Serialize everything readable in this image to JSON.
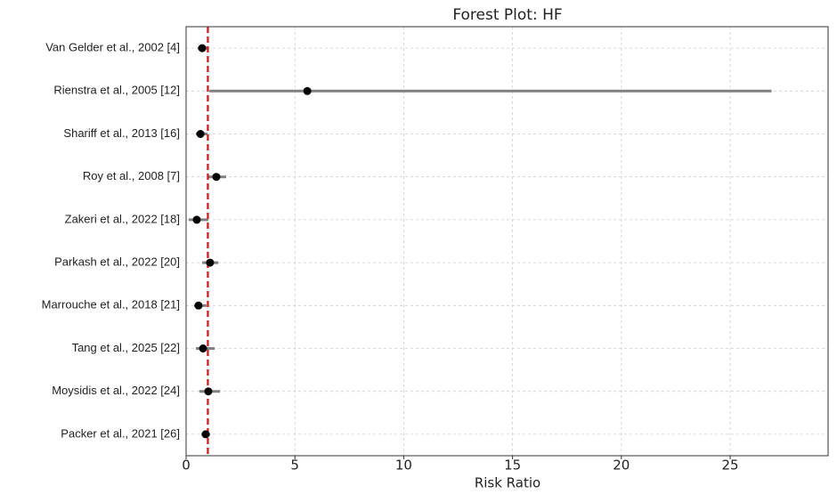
{
  "chart_data": {
    "type": "forest",
    "title": "Forest Plot: HF",
    "x_label": "Risk Ratio",
    "categories": [
      "Van Gelder et al., 2002 [4]",
      "Rienstra et al., 2005 [12]",
      "Shariff et al., 2013 [16]",
      "Roy et al., 2008 [7]",
      "Zakeri et al., 2022 [18]",
      "Parkash et al., 2022 [20]",
      "Marrouche et al., 2018 [21]",
      "Tang et al., 2025 [22]",
      "Moysidis et al., 2022 [24]",
      "Packer et al., 2021 [26]"
    ],
    "values": [
      0.74,
      5.57,
      0.66,
      1.39,
      0.49,
      1.1,
      0.57,
      0.78,
      1.02,
      0.9
    ],
    "ci_lower": [
      0.53,
      1.07,
      0.45,
      1.02,
      0.12,
      0.74,
      0.37,
      0.45,
      0.61,
      0.7
    ],
    "ci_upper": [
      0.98,
      26.9,
      0.98,
      1.84,
      1.02,
      1.48,
      0.94,
      1.31,
      1.56,
      1.11
    ],
    "reference_line": 1,
    "reference_color": "#dd1111",
    "point_color": "#000000",
    "ci_color": "#808080",
    "xlim": [
      0,
      29.5
    ],
    "xticks": [
      0,
      5,
      10,
      15,
      20,
      25
    ],
    "grid": true
  }
}
